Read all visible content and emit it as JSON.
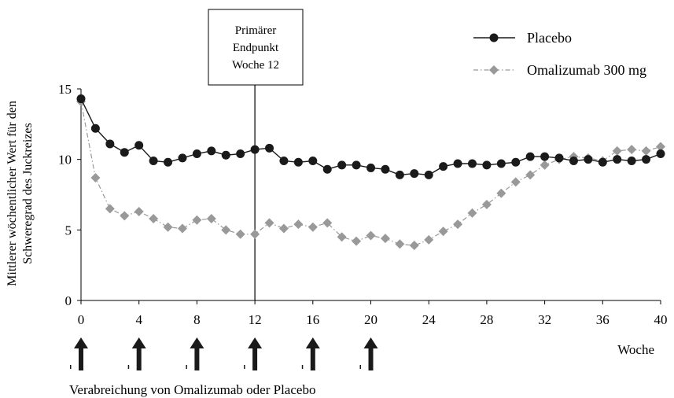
{
  "chart_data": {
    "type": "line",
    "xlabel": "Woche",
    "ylabel_lines": [
      "Mittlerer wöchentlicher Wert für den",
      "Schweregrad des Juckreizes"
    ],
    "xlim": [
      0,
      40
    ],
    "ylim": [
      0,
      15
    ],
    "x_ticks": [
      "0",
      "4",
      "8",
      "12",
      "16",
      "20",
      "24",
      "28",
      "32",
      "36",
      "40"
    ],
    "y_ticks": [
      "0",
      "5",
      "10",
      "15"
    ],
    "grid": false,
    "legend_position": "top-right",
    "annotation": {
      "lines": [
        "Primärer",
        "Endpunkt",
        "Woche 12"
      ],
      "x": 12
    },
    "dosing": {
      "weeks": [
        0,
        4,
        8,
        12,
        16,
        20
      ],
      "label": "Verabreichung von Omalizumab oder Placebo"
    },
    "series": [
      {
        "name": "Placebo",
        "color": "#1a1a1a",
        "marker": "circle",
        "x": [
          0,
          1,
          2,
          3,
          4,
          5,
          6,
          7,
          8,
          9,
          10,
          11,
          12,
          13,
          14,
          15,
          16,
          17,
          18,
          19,
          20,
          21,
          22,
          23,
          24,
          25,
          26,
          27,
          28,
          29,
          30,
          31,
          32,
          33,
          34,
          35,
          36,
          37,
          38,
          39,
          40
        ],
        "values": [
          14.3,
          12.2,
          11.1,
          10.5,
          11.0,
          9.9,
          9.8,
          10.1,
          10.4,
          10.6,
          10.3,
          10.4,
          10.7,
          10.8,
          9.9,
          9.8,
          9.9,
          9.3,
          9.6,
          9.6,
          9.4,
          9.3,
          8.9,
          9.0,
          8.9,
          9.5,
          9.7,
          9.7,
          9.6,
          9.7,
          9.8,
          10.2,
          10.2,
          10.1,
          9.9,
          10.0,
          9.8,
          10.0,
          9.9,
          10.0,
          10.4
        ]
      },
      {
        "name": "Omalizumab 300 mg",
        "color": "#999999",
        "marker": "diamond",
        "x": [
          0,
          1,
          2,
          3,
          4,
          5,
          6,
          7,
          8,
          9,
          10,
          11,
          12,
          13,
          14,
          15,
          16,
          17,
          18,
          19,
          20,
          21,
          22,
          23,
          24,
          25,
          26,
          27,
          28,
          29,
          30,
          31,
          32,
          33,
          34,
          35,
          36,
          37,
          38,
          39,
          40
        ],
        "values": [
          14.1,
          8.7,
          6.5,
          6.0,
          6.3,
          5.8,
          5.2,
          5.1,
          5.7,
          5.8,
          5.0,
          4.7,
          4.7,
          5.5,
          5.1,
          5.4,
          5.2,
          5.5,
          4.5,
          4.2,
          4.6,
          4.4,
          4.0,
          3.9,
          4.3,
          4.9,
          5.4,
          6.2,
          6.8,
          7.6,
          8.4,
          8.9,
          9.6,
          10.0,
          10.2,
          10.1,
          9.9,
          10.6,
          10.7,
          10.6,
          10.9
        ]
      }
    ]
  }
}
